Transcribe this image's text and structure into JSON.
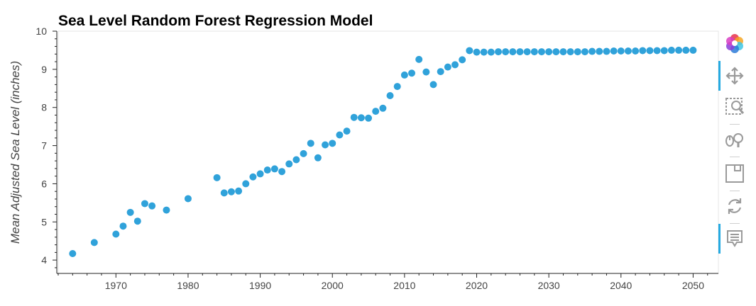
{
  "chart_data": {
    "type": "scatter",
    "title": "Sea Level Random Forest Regression Model",
    "ylabel": "Mean Adjusted Sea Level (inches)",
    "xlabel": "",
    "xlim": [
      1962,
      2053.5
    ],
    "ylim": [
      3.65,
      10
    ],
    "x_ticks": [
      1970,
      1980,
      1990,
      2000,
      2010,
      2020,
      2030,
      2040,
      2050
    ],
    "y_ticks": [
      4,
      5,
      6,
      7,
      8,
      9,
      10
    ],
    "grid": false,
    "marker_color": "#30a2da",
    "series": [
      {
        "x": [
          1964,
          1967,
          1970,
          1971,
          1972,
          1973,
          1974,
          1975,
          1977,
          1980,
          1984,
          1985,
          1986,
          1987,
          1988,
          1989,
          1990,
          1991,
          1992,
          1993,
          1994,
          1995,
          1996,
          1997,
          1998,
          1999,
          2000,
          2001,
          2002,
          2003,
          2004,
          2005,
          2006,
          2007,
          2008,
          2009,
          2010,
          2011,
          2012,
          2013,
          2014,
          2015,
          2016,
          2017,
          2018,
          2019,
          2020,
          2021,
          2022,
          2023,
          2024,
          2025,
          2026,
          2027,
          2028,
          2029,
          2030,
          2031,
          2032,
          2033,
          2034,
          2035,
          2036,
          2037,
          2038,
          2039,
          2040,
          2041,
          2042,
          2043,
          2044,
          2045,
          2046,
          2047,
          2048,
          2049,
          2050
        ],
        "y": [
          4.17,
          4.46,
          4.68,
          4.89,
          5.25,
          5.02,
          5.48,
          5.42,
          5.31,
          5.61,
          6.16,
          5.76,
          5.79,
          5.81,
          6.0,
          6.18,
          6.26,
          6.36,
          6.39,
          6.32,
          6.52,
          6.63,
          6.79,
          7.06,
          6.68,
          7.02,
          7.06,
          7.28,
          7.38,
          7.74,
          7.73,
          7.72,
          7.9,
          7.98,
          8.31,
          8.55,
          8.85,
          8.9,
          9.26,
          8.93,
          8.6,
          8.94,
          9.06,
          9.12,
          9.25,
          9.49,
          9.45,
          9.45,
          9.45,
          9.46,
          9.46,
          9.46,
          9.46,
          9.46,
          9.46,
          9.46,
          9.46,
          9.46,
          9.46,
          9.46,
          9.46,
          9.46,
          9.47,
          9.47,
          9.47,
          9.48,
          9.48,
          9.48,
          9.48,
          9.49,
          9.49,
          9.49,
          9.49,
          9.5,
          9.5,
          9.5,
          9.5
        ]
      }
    ]
  },
  "toolbar": {
    "tools": [
      {
        "name": "bokeh-logo-icon"
      },
      {
        "name": "pan-tool-icon",
        "active": true
      },
      {
        "name": "box-zoom-tool-icon"
      },
      {
        "name": "wheel-zoom-tool-icon"
      },
      {
        "name": "save-tool-icon"
      },
      {
        "name": "reset-tool-icon"
      },
      {
        "name": "hover-tool-icon",
        "active": true
      }
    ]
  }
}
